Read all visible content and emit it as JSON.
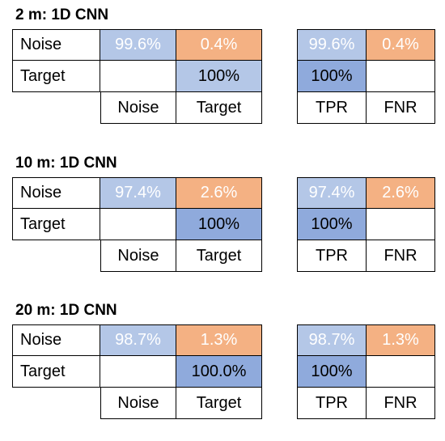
{
  "colors": {
    "light_blue": "#b4c7e7",
    "mid_blue": "#8faadc",
    "orange": "#f4b183",
    "white": "#ffffff"
  },
  "blocks": [
    {
      "title": "2 m: 1D CNN",
      "matrix": {
        "row_labels": [
          "Noise",
          "Target"
        ],
        "col_labels": [
          "Noise",
          "Target"
        ],
        "values": [
          [
            "99.6%",
            "0.4%"
          ],
          [
            "",
            "100%"
          ]
        ]
      },
      "rates": {
        "values": [
          [
            "99.6%",
            "0.4%"
          ],
          [
            "100%",
            ""
          ]
        ],
        "col_labels": [
          "TPR",
          "FNR"
        ]
      }
    },
    {
      "title": "10 m: 1D CNN",
      "matrix": {
        "row_labels": [
          "Noise",
          "Target"
        ],
        "col_labels": [
          "Noise",
          "Target"
        ],
        "values": [
          [
            "97.4%",
            "2.6%"
          ],
          [
            "",
            "100%"
          ]
        ]
      },
      "rates": {
        "values": [
          [
            "97.4%",
            "2.6%"
          ],
          [
            "100%",
            ""
          ]
        ],
        "col_labels": [
          "TPR",
          "FNR"
        ]
      }
    },
    {
      "title": "20 m: 1D CNN",
      "matrix": {
        "row_labels": [
          "Noise",
          "Target"
        ],
        "col_labels": [
          "Noise",
          "Target"
        ],
        "values": [
          [
            "98.7%",
            "1.3%"
          ],
          [
            "",
            "100.0%"
          ]
        ]
      },
      "rates": {
        "values": [
          [
            "98.7%",
            "1.3%"
          ],
          [
            "100%",
            ""
          ]
        ],
        "col_labels": [
          "TPR",
          "FNR"
        ]
      }
    }
  ]
}
